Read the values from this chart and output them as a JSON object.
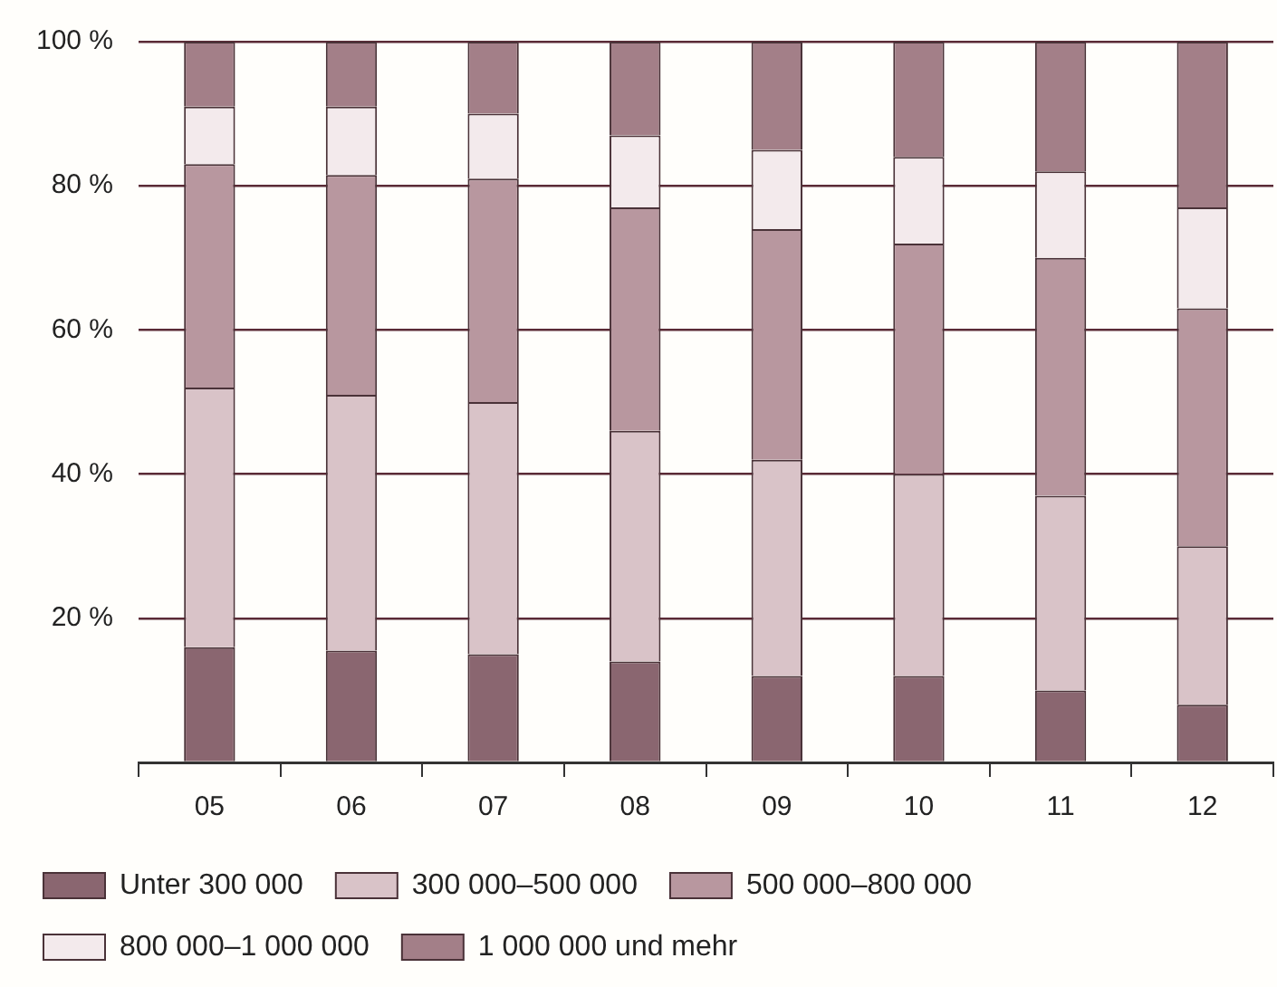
{
  "chart_data": {
    "type": "bar",
    "stacked": true,
    "categories": [
      "05",
      "06",
      "07",
      "08",
      "09",
      "10",
      "11",
      "12"
    ],
    "series": [
      {
        "name": "Unter 300 000",
        "color": "#8a6670",
        "values": [
          16,
          15.5,
          15,
          14,
          12,
          12,
          10,
          8
        ]
      },
      {
        "name": "300 000–500 000",
        "color": "#d9c3c8",
        "values": [
          36,
          35.5,
          35,
          32,
          30,
          28,
          27,
          22
        ]
      },
      {
        "name": "500 000–800 000",
        "color": "#b8979f",
        "values": [
          31,
          30.5,
          31,
          31,
          32,
          32,
          33,
          33
        ]
      },
      {
        "name": "800 000–1 000 000",
        "color": "#f3eaec",
        "values": [
          8,
          9.5,
          9,
          10,
          11,
          12,
          12,
          14
        ]
      },
      {
        "name": "1 000 000 und mehr",
        "color": "#a37f88",
        "values": [
          9,
          9,
          10,
          13,
          15,
          16,
          18,
          23
        ]
      }
    ],
    "ylim": [
      0,
      100
    ],
    "yticks": [
      {
        "value": 0,
        "label": null
      },
      {
        "value": 20,
        "label": "20 %"
      },
      {
        "value": 40,
        "label": "40 %"
      },
      {
        "value": 60,
        "label": "60 %"
      },
      {
        "value": 80,
        "label": "80 %"
      },
      {
        "value": 100,
        "label": "100 %"
      }
    ],
    "grid": "y",
    "legend": "bottom"
  }
}
